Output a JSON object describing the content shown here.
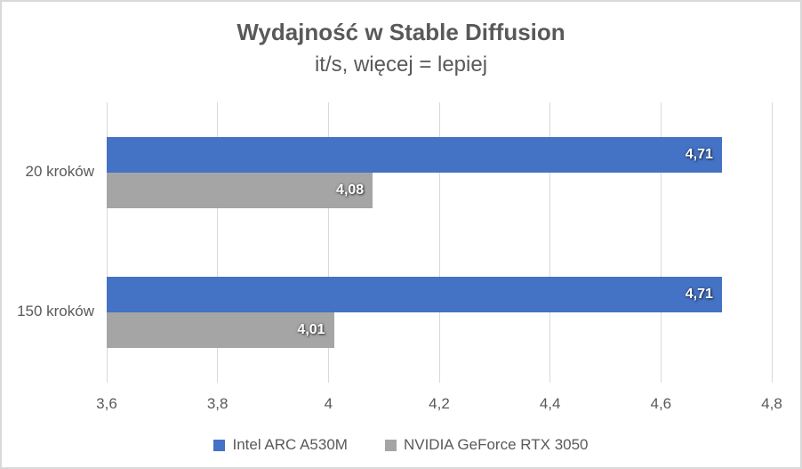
{
  "chart_data": {
    "type": "bar",
    "orientation": "horizontal",
    "title": "Wydajność w Stable Diffusion",
    "subtitle": "it/s, więcej = lepiej",
    "categories": [
      "20 kroków",
      "150 kroków"
    ],
    "series": [
      {
        "name": "Intel ARC A530M",
        "color": "#4472C4",
        "values": [
          4.71,
          4.71
        ],
        "labels": [
          "4,71",
          "4,71"
        ]
      },
      {
        "name": "NVIDIA GeForce RTX 3050",
        "color": "#A5A5A5",
        "values": [
          4.08,
          4.01
        ],
        "labels": [
          "4,08",
          "4,01"
        ]
      }
    ],
    "xlim": [
      3.6,
      4.8
    ],
    "x_ticks": [
      "3,6",
      "3,8",
      "4",
      "4,2",
      "4,4",
      "4,6",
      "4,8"
    ],
    "grid": true,
    "legend_position": "bottom"
  },
  "colors": {
    "series_intel": "#4472C4",
    "series_nvidia": "#A5A5A5",
    "text": "#595959",
    "gridline": "#D9D9D9",
    "chart_border": "#D9D9D9",
    "data_label_text": "#FFFFFF",
    "background": "#FFFFFF"
  }
}
